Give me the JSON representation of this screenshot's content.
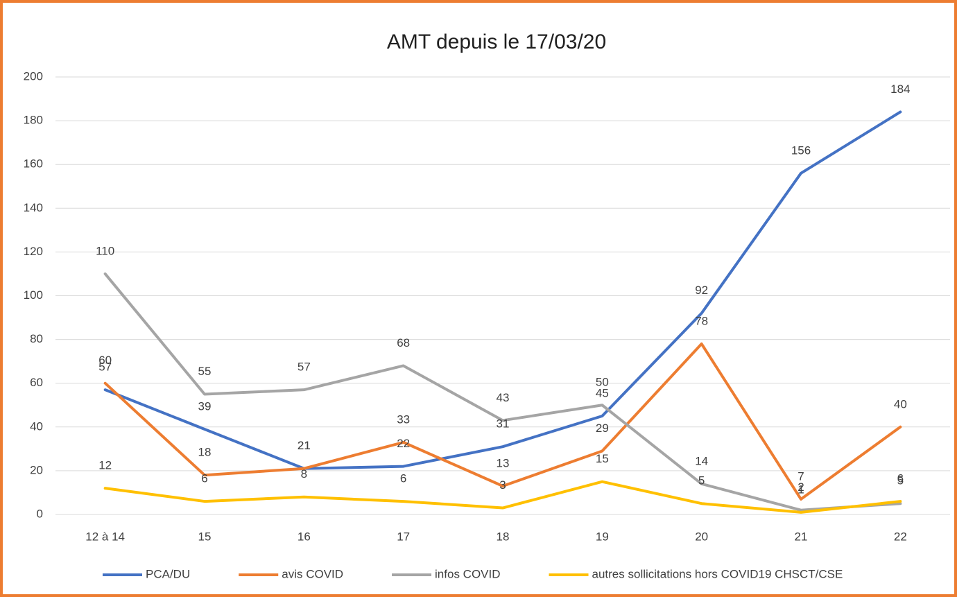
{
  "chart_data": {
    "type": "line",
    "title": "AMT depuis le 17/03/20",
    "categories": [
      "12 à 14",
      "15",
      "16",
      "17",
      "18",
      "19",
      "20",
      "21",
      "22"
    ],
    "series": [
      {
        "name": "PCA/DU",
        "color": "#4472c4",
        "values": [
          57,
          39,
          21,
          22,
          31,
          45,
          92,
          156,
          184
        ]
      },
      {
        "name": "avis COVID",
        "color": "#ed7d31",
        "values": [
          60,
          18,
          21,
          33,
          13,
          29,
          78,
          7,
          40
        ]
      },
      {
        "name": "infos COVID",
        "color": "#a5a5a5",
        "values": [
          110,
          55,
          57,
          68,
          43,
          50,
          14,
          2,
          5
        ]
      },
      {
        "name": "autres sollicitations hors COVID19 CHSCT/CSE",
        "color": "#ffc000",
        "values": [
          12,
          6,
          8,
          6,
          3,
          15,
          5,
          1,
          6
        ]
      }
    ],
    "ylim": [
      0,
      200
    ],
    "yticks": [
      0,
      20,
      40,
      60,
      80,
      100,
      120,
      140,
      160,
      180,
      200
    ],
    "grid": true,
    "legend": "bottom"
  }
}
